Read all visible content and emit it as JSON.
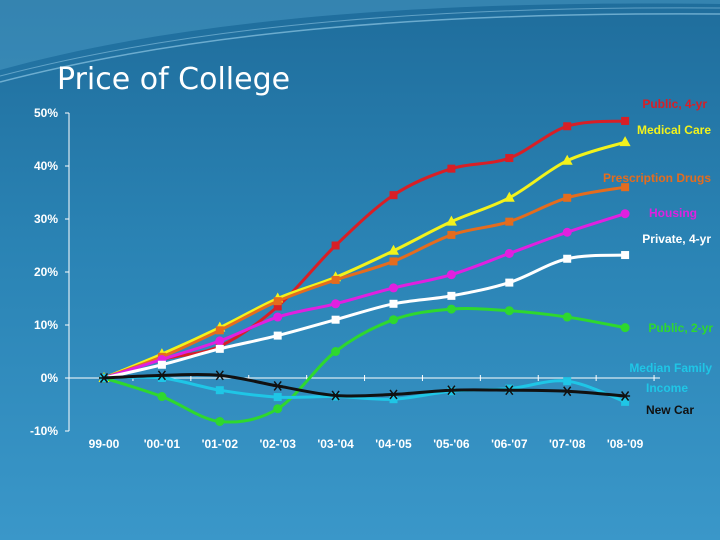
{
  "slide": {
    "title": "Price of College"
  },
  "chart_data": {
    "type": "line",
    "title": "Price of College",
    "categories": [
      "99-00",
      "'00-'01",
      "'01-'02",
      "'02-'03",
      "'03-'04",
      "'04-'05",
      "'05-'06",
      "'06-'07",
      "'07-'08",
      "'08-'09"
    ],
    "yticks": [
      "50%",
      "40%",
      "30%",
      "20%",
      "10%",
      "0%",
      "-10%"
    ],
    "ylim": [
      -10,
      50
    ],
    "grid": false,
    "series": [
      {
        "name": "Public, 4-yr",
        "color": "#d81f26",
        "marker": "square",
        "values": [
          0,
          3.5,
          6,
          13.5,
          25,
          34.5,
          39.5,
          41.5,
          47.5,
          48.5
        ]
      },
      {
        "name": "Medical Care",
        "color": "#f2f21c",
        "marker": "triangle",
        "values": [
          0,
          4.5,
          9.5,
          15,
          19,
          24,
          29.5,
          34,
          41,
          44.5
        ]
      },
      {
        "name": "Prescription Drugs",
        "color": "#e46c1e",
        "marker": "square",
        "values": [
          0,
          4,
          9,
          14.5,
          18.5,
          22,
          27,
          29.5,
          34,
          36
        ]
      },
      {
        "name": "Housing",
        "color": "#e020e0",
        "marker": "circle",
        "values": [
          0,
          3.5,
          7,
          11.5,
          14,
          17,
          19.5,
          23.5,
          27.5,
          31
        ]
      },
      {
        "name": "Private, 4-yr",
        "color": "#ffffff",
        "marker": "square",
        "values": [
          0,
          2.5,
          5.5,
          8,
          11,
          14,
          15.5,
          18,
          22.5,
          23.2
        ]
      },
      {
        "name": "Public, 2-yr",
        "color": "#2ed82e",
        "marker": "circle",
        "values": [
          0,
          -3.5,
          -8.2,
          -5.8,
          5,
          11,
          13,
          12.7,
          11.5,
          9.5
        ]
      },
      {
        "name": "Median Family Income",
        "color": "#1fc6e6",
        "marker": "square",
        "values": [
          0,
          0,
          -2.3,
          -3.6,
          -3.5,
          -4,
          -2.5,
          -2,
          -0.6,
          -4.5
        ]
      },
      {
        "name": "New Car",
        "color": "#111111",
        "marker": "asterisk",
        "values": [
          0,
          0.5,
          0.5,
          -1.5,
          -3.3,
          -3.1,
          -2.3,
          -2.3,
          -2.5,
          -3.4
        ]
      }
    ],
    "series_labels": [
      {
        "text": "Public, 4-yr",
        "color": "#d81f26"
      },
      {
        "text": "Medical Care",
        "color": "#f2f21c"
      },
      {
        "text": "Prescription Drugs",
        "color": "#e46c1e"
      },
      {
        "text": "Housing",
        "color": "#e020e0"
      },
      {
        "text": "Private, 4-yr",
        "color": "#ffffff"
      },
      {
        "text": "Public, 2-yr",
        "color": "#2ed82e"
      },
      {
        "text": "Median Family",
        "color": "#1fc6e6"
      },
      {
        "text": "Income",
        "color": "#1fc6e6"
      },
      {
        "text": "New Car",
        "color": "#111111"
      }
    ]
  }
}
